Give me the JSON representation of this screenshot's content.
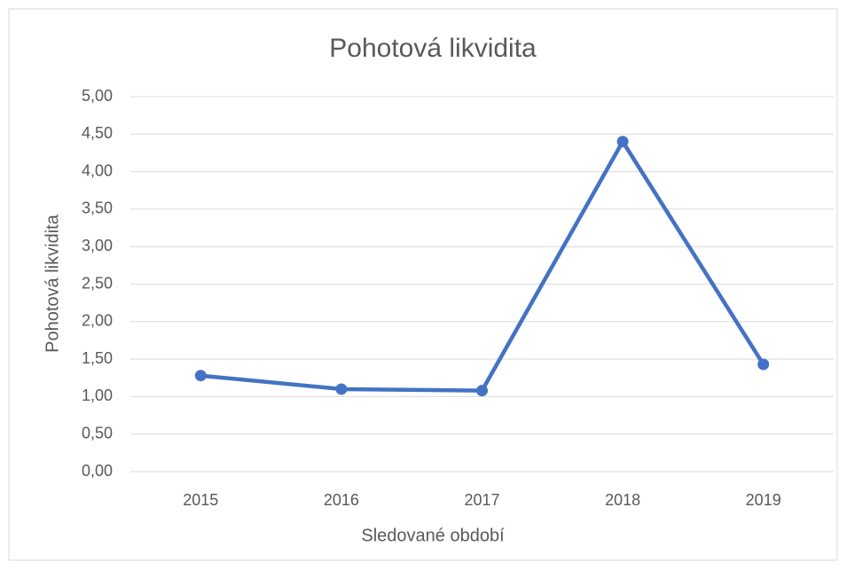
{
  "chart_data": {
    "type": "line",
    "title": "Pohotová likvidita",
    "x_label": "Sledované období",
    "y_label": "Pohotová likvidita",
    "categories": [
      "2015",
      "2016",
      "2017",
      "2018",
      "2019"
    ],
    "series": [
      {
        "name": "Pohotová likvidita",
        "color": "#4472c4",
        "values": [
          1.28,
          1.1,
          1.08,
          4.4,
          1.43
        ]
      }
    ],
    "ylim": [
      0,
      5
    ],
    "yticks": [
      {
        "value": 0,
        "label": "0,00"
      },
      {
        "value": 0.5,
        "label": "0,50"
      },
      {
        "value": 1,
        "label": "1,00"
      },
      {
        "value": 1.5,
        "label": "1,50"
      },
      {
        "value": 2,
        "label": "2,00"
      },
      {
        "value": 2.5,
        "label": "2,50"
      },
      {
        "value": 3,
        "label": "3,00"
      },
      {
        "value": 3.5,
        "label": "3,50"
      },
      {
        "value": 4,
        "label": "4,00"
      },
      {
        "value": 4.5,
        "label": "4,50"
      },
      {
        "value": 5,
        "label": "5,00"
      }
    ],
    "grid": true
  }
}
